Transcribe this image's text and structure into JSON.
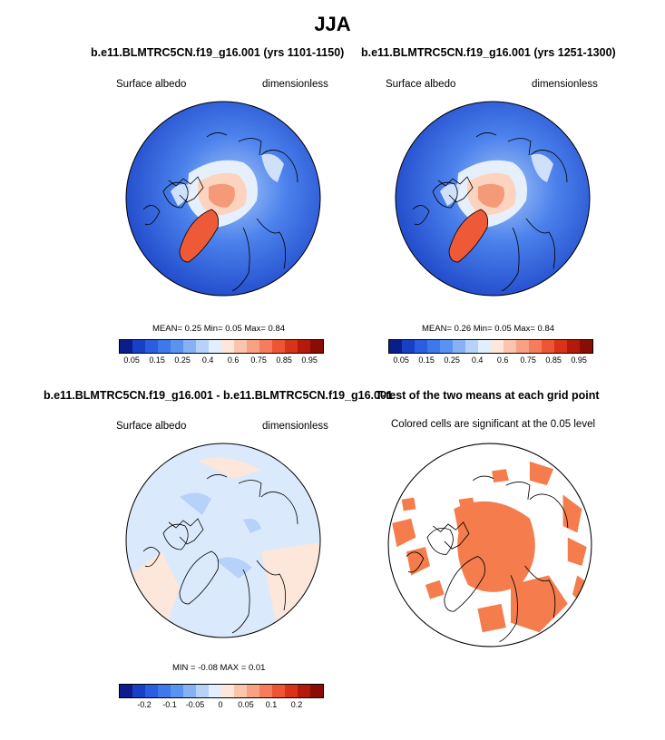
{
  "figure_title": "JJA",
  "panels": [
    {
      "title": "b.e11.BLMTRC5CN.f19_g16.001 (yrs 1101-1150)",
      "left_label": "Surface albedo",
      "right_label": "dimensionless",
      "stats_text": "MEAN=   0.25  Min=   0.05  Max=   0.84",
      "mean": 0.25,
      "min": 0.05,
      "max": 0.84
    },
    {
      "title": "b.e11.BLMTRC5CN.f19_g16.001 (yrs 1251-1300)",
      "left_label": "Surface albedo",
      "right_label": "dimensionless",
      "stats_text": "MEAN=   0.26  Min=   0.05  Max=   0.84",
      "mean": 0.26,
      "min": 0.05,
      "max": 0.84
    },
    {
      "title": "b.e11.BLMTRC5CN.f19_g16.001 - b.e11.BLMTRC5CN.f19_g16.001",
      "left_label": "Surface albedo",
      "right_label": "dimensionless",
      "stats_text": "MIN =   -0.08  MAX =   0.01",
      "min": -0.08,
      "max": 0.01
    },
    {
      "title": "T-test of the two means at each grid point",
      "subtitle": "Colored cells are significant at the 0.05 level"
    }
  ],
  "colorbars": {
    "absolute": {
      "colors": [
        "#0b1d8c",
        "#1740c4",
        "#2a5de0",
        "#3f78ea",
        "#5a92f0",
        "#86b2f4",
        "#b6d2f8",
        "#e2eefc",
        "#fde6da",
        "#fbc4ac",
        "#f8a183",
        "#f57c5c",
        "#ee5535",
        "#d83218",
        "#b31a0a",
        "#8a0d04"
      ],
      "tick_labels": [
        "0.05",
        "0.15",
        "0.25",
        "0.4",
        "0.6",
        "0.75",
        "0.85",
        "0.95"
      ]
    },
    "difference": {
      "colors": [
        "#0b1d8c",
        "#1740c4",
        "#2a5de0",
        "#3f78ea",
        "#5a92f0",
        "#86b2f4",
        "#b6d2f8",
        "#e2eefc",
        "#fde6da",
        "#fbc4ac",
        "#f8a183",
        "#f57c5c",
        "#ee5535",
        "#d83218",
        "#b31a0a",
        "#8a0d04"
      ],
      "tick_labels": [
        "-0.2",
        "-0.1",
        "-0.05",
        "0",
        "0.05",
        "0.1",
        "0.2"
      ]
    }
  },
  "chart_data": [
    {
      "type": "heatmap",
      "title": "b.e11.BLMTRC5CN.f19_g16.001 (yrs 1101-1150)",
      "variable": "Surface albedo",
      "units": "dimensionless",
      "mean": 0.25,
      "min": 0.05,
      "max": 0.84
    },
    {
      "type": "heatmap",
      "title": "b.e11.BLMTRC5CN.f19_g16.001 (yrs 1251-1300)",
      "variable": "Surface albedo",
      "units": "dimensionless",
      "mean": 0.26,
      "min": 0.05,
      "max": 0.84
    },
    {
      "type": "heatmap",
      "title": "b.e11.BLMTRC5CN.f19_g16.001 - b.e11.BLMTRC5CN.f19_g16.001",
      "variable": "Surface albedo",
      "units": "dimensionless",
      "min": -0.08,
      "max": 0.01
    },
    {
      "type": "heatmap",
      "title": "T-test of the two means at each grid point",
      "significance_level": 0.05
    }
  ],
  "colors": {
    "ttest_fill": "#f57c4c",
    "coast": "#000000"
  }
}
